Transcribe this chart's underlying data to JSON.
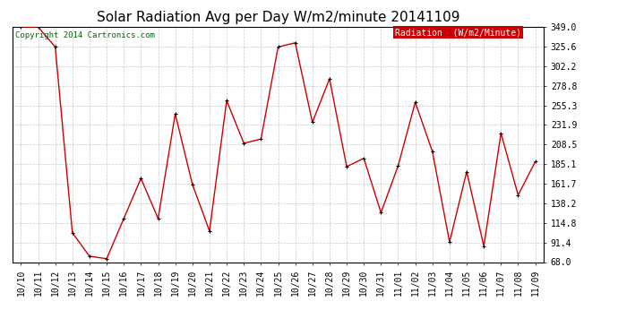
{
  "title": "Solar Radiation Avg per Day W/m2/minute 20141109",
  "copyright": "Copyright 2014 Cartronics.com",
  "legend_label": "Radiation  (W/m2/Minute)",
  "dates": [
    "10/10",
    "10/11",
    "10/12",
    "10/13",
    "10/14",
    "10/15",
    "10/16",
    "10/17",
    "10/18",
    "10/19",
    "10/20",
    "10/21",
    "10/22",
    "10/23",
    "10/24",
    "10/25",
    "10/26",
    "10/27",
    "10/28",
    "10/29",
    "10/30",
    "10/31",
    "11/01",
    "11/02",
    "11/03",
    "11/04",
    "11/05",
    "11/06",
    "11/07",
    "11/08",
    "11/09"
  ],
  "values": [
    349.0,
    349.0,
    325.0,
    103.0,
    75.0,
    72.0,
    120.0,
    168.0,
    120.0,
    245.0,
    161.0,
    105.0,
    261.0,
    210.0,
    215.0,
    325.0,
    330.0,
    235.0,
    287.0,
    182.0,
    192.0,
    127.0,
    183.0,
    259.0,
    200.0,
    92.0,
    176.0,
    87.0,
    222.0,
    148.0,
    188.0
  ],
  "ymin": 68.0,
  "ymax": 349.0,
  "yticks": [
    68.0,
    91.4,
    114.8,
    138.2,
    161.7,
    185.1,
    208.5,
    231.9,
    255.3,
    278.8,
    302.2,
    325.6,
    349.0
  ],
  "line_color": "#cc0000",
  "marker_color": "#000000",
  "bg_color": "#ffffff",
  "grid_color": "#bbbbbb",
  "legend_bg": "#cc0000",
  "legend_text_color": "#ffffff",
  "title_fontsize": 11,
  "tick_fontsize": 7,
  "copyright_fontsize": 6.5,
  "legend_fontsize": 7
}
